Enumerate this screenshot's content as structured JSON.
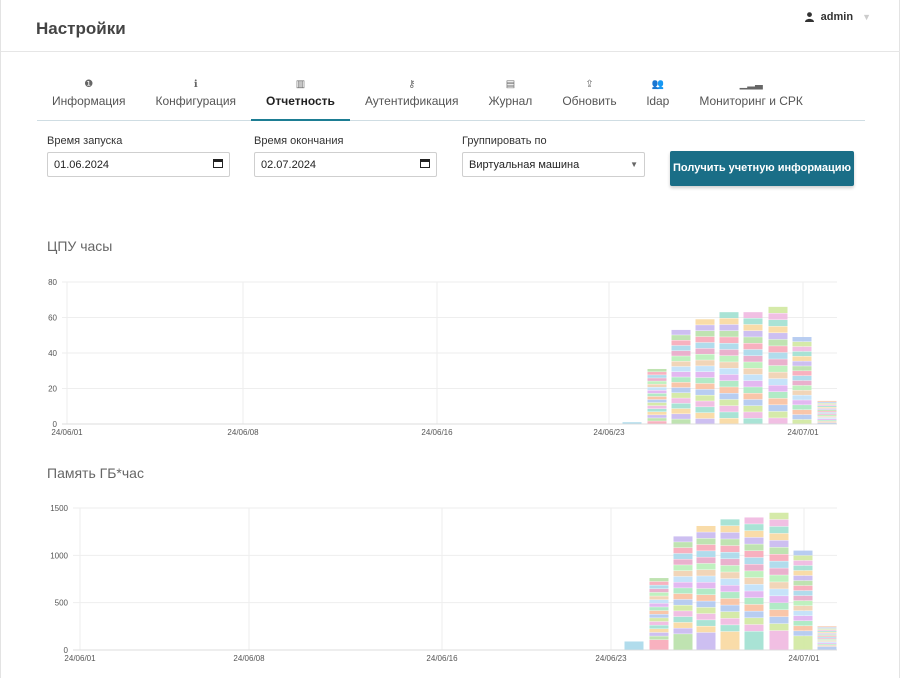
{
  "header": {
    "title": "Настройки",
    "user": "admin"
  },
  "tabs": [
    {
      "label": "Информация",
      "icon": "info-circle-icon",
      "glyph": "❶",
      "active": false
    },
    {
      "label": "Конфигурация",
      "icon": "info-icon",
      "glyph": "ℹ",
      "active": false
    },
    {
      "label": "Отчетность",
      "icon": "bar-chart-icon",
      "glyph": "▥",
      "active": true
    },
    {
      "label": "Аутентификация",
      "icon": "key-icon",
      "glyph": "⚷",
      "active": false
    },
    {
      "label": "Журнал",
      "icon": "file-icon",
      "glyph": "▤",
      "active": false
    },
    {
      "label": "Обновить",
      "icon": "upload-icon",
      "glyph": "⇪",
      "active": false
    },
    {
      "label": "ldap",
      "icon": "users-icon",
      "glyph": "👥",
      "active": false
    },
    {
      "label": "Мониторинг и СРК",
      "icon": "signal-icon",
      "glyph": "▁▂▃",
      "active": false
    }
  ],
  "form": {
    "start": {
      "label": "Время запуска",
      "value": "01.06.2024"
    },
    "end": {
      "label": "Время окончания",
      "value": "02.07.2024"
    },
    "group": {
      "label": "Группировать по",
      "value": "Виртуальная машина"
    },
    "button": "Получить учетную информацию"
  },
  "colors": {
    "accent": "#1d7d93",
    "button": "#1a6e87"
  },
  "chart_data": [
    {
      "type": "bar",
      "stacked": true,
      "title": "ЦПУ часы",
      "ylim": [
        0,
        80
      ],
      "yticks": [
        0,
        20,
        40,
        60,
        80
      ],
      "xtick_labels": [
        "24/06/01",
        "24/06/08",
        "24/06/16",
        "24/06/23",
        "24/07/01"
      ],
      "categories": [
        "24/06/24",
        "24/06/25",
        "24/06/26",
        "24/06/27",
        "24/06/28",
        "24/06/29",
        "24/06/30",
        "24/07/01",
        "24/07/02"
      ],
      "totals": [
        1,
        31,
        53,
        59,
        63,
        63,
        66,
        49,
        13
      ]
    },
    {
      "type": "bar",
      "stacked": true,
      "title": "Память ГБ*час",
      "ylim": [
        0,
        1500
      ],
      "yticks": [
        0,
        500,
        1000,
        1500
      ],
      "xtick_labels": [
        "24/06/01",
        "24/06/08",
        "24/06/16",
        "24/06/23",
        "24/07/01"
      ],
      "categories": [
        "24/06/24",
        "24/06/25",
        "24/06/26",
        "24/06/27",
        "24/06/28",
        "24/06/29",
        "24/06/30",
        "24/07/01",
        "24/07/02"
      ],
      "totals": [
        90,
        760,
        1200,
        1310,
        1380,
        1400,
        1450,
        1050,
        250
      ]
    }
  ]
}
